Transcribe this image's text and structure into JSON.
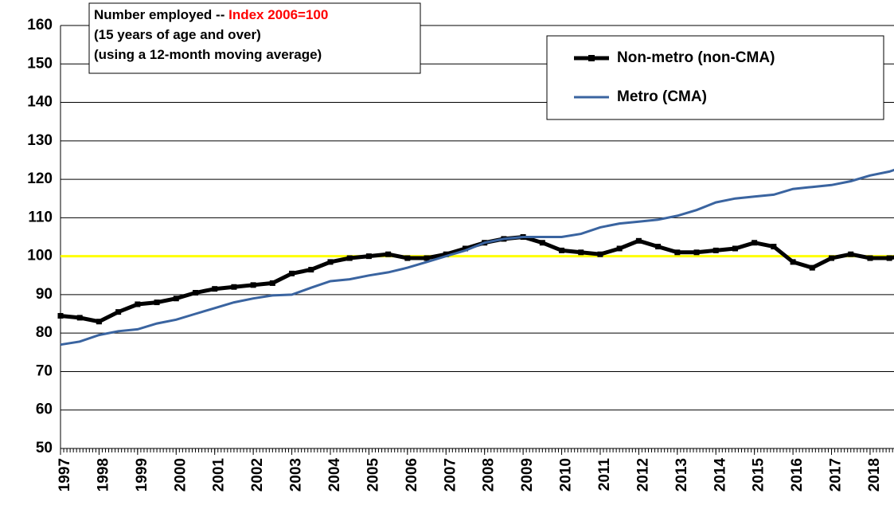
{
  "chart_data": {
    "type": "line",
    "title_lines": [
      [
        "Number employed -- ",
        "Index 2006=100"
      ],
      [
        "(15 years of age and over)"
      ],
      [
        "(using a 12-month moving average)"
      ]
    ],
    "title_highlight_color": "#ff0000",
    "x": [
      1997,
      1997.5,
      1998,
      1998.5,
      1999,
      1999.5,
      2000,
      2000.5,
      2001,
      2001.5,
      2002,
      2002.5,
      2003,
      2003.5,
      2004,
      2004.5,
      2005,
      2005.5,
      2006,
      2006.5,
      2007,
      2007.5,
      2008,
      2008.5,
      2009,
      2009.5,
      2010,
      2010.5,
      2011,
      2011.5,
      2012,
      2012.5,
      2013,
      2013.5,
      2014,
      2014.5,
      2015,
      2015.5,
      2016,
      2016.5,
      2017,
      2017.5,
      2018,
      2018.5,
      2018.8
    ],
    "series": [
      {
        "name": "Non-metro (non-CMA)",
        "color": "#000000",
        "marker": "square",
        "values": [
          84.5,
          84,
          83,
          85.5,
          87.5,
          88,
          89,
          90.5,
          91.5,
          92,
          92.5,
          93,
          95.5,
          96.5,
          98.5,
          99.5,
          100,
          100.5,
          99.5,
          99.5,
          100.5,
          102,
          103.5,
          104.5,
          105,
          103.5,
          101.5,
          101,
          100.5,
          102,
          104,
          102.5,
          101,
          101,
          101.5,
          102,
          103.5,
          102.5,
          98.5,
          97,
          99.5,
          100.5,
          99.5,
          99.5,
          100
        ]
      },
      {
        "name": "Metro (CMA)",
        "color": "#3a64a0",
        "values": [
          77,
          77.8,
          79.5,
          80.5,
          81,
          82.5,
          83.5,
          85,
          86.5,
          88,
          89,
          89.8,
          90,
          91.8,
          93.5,
          94,
          95,
          95.8,
          97,
          98.5,
          100,
          101.5,
          103.5,
          104.5,
          105,
          105,
          105,
          105.8,
          107.5,
          108.5,
          109,
          109.5,
          110.5,
          112,
          114,
          115,
          115.5,
          116,
          117.5,
          118,
          118.5,
          119.5,
          121,
          122,
          123
        ]
      }
    ],
    "reference_line": {
      "value": 100,
      "color": "#ffff00"
    },
    "xlim": [
      1997,
      2018.6
    ],
    "xticks": [
      1997,
      1998,
      1999,
      2000,
      2001,
      2002,
      2003,
      2004,
      2005,
      2006,
      2007,
      2008,
      2009,
      2010,
      2011,
      2012,
      2013,
      2014,
      2015,
      2016,
      2017,
      2018
    ],
    "ylim": [
      50,
      160
    ],
    "yticks": [
      50,
      60,
      70,
      80,
      90,
      100,
      110,
      120,
      130,
      140,
      150,
      160
    ],
    "grid": true,
    "legend": "upper right"
  }
}
